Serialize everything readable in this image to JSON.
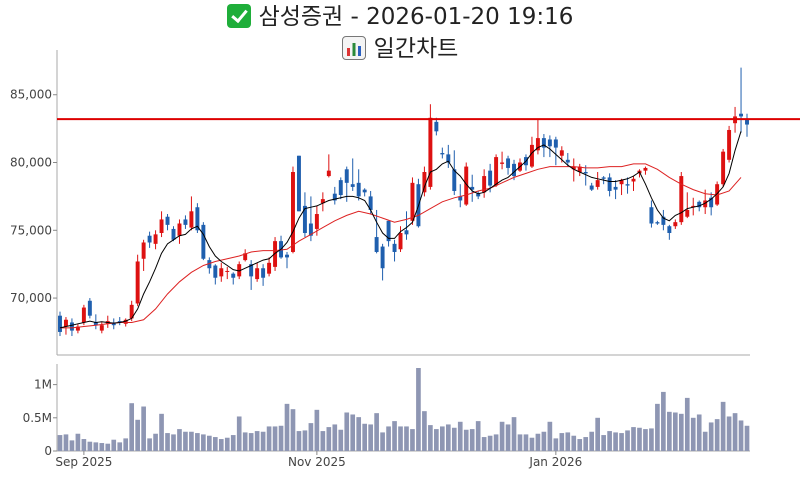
{
  "title": {
    "main": "삼성증권 - 2026-01-20 19:16",
    "sub": "일간차트",
    "main_icon": "check-mark-icon",
    "sub_icon": "bar-chart-icon"
  },
  "colors": {
    "up": "#dd1111",
    "down": "#1f5fae",
    "ma_short": "#000000",
    "ma_long": "#dd2222",
    "ref_line": "#dd0000",
    "volume": "#8e96b3"
  },
  "chart_data": {
    "type": "candlestick",
    "price_axis": {
      "ylim": [
        65800,
        88300
      ],
      "ticks": [
        70000,
        75000,
        80000,
        85000
      ],
      "tick_labels": [
        "70,000",
        "75,000",
        "80,000",
        "85,000"
      ]
    },
    "volume_axis": {
      "ylim": [
        0,
        1250000
      ],
      "ticks": [
        0,
        500000,
        1000000
      ],
      "tick_labels": [
        "0",
        "0.5M",
        "1M"
      ]
    },
    "x_ticks": [
      {
        "index": 4,
        "label": "Sep 2025"
      },
      {
        "index": 43,
        "label": "Nov 2025"
      },
      {
        "index": 83,
        "label": "Jan 2026"
      }
    ],
    "reference_line": 83200,
    "candles": [
      [
        68700,
        69000,
        67200,
        67500
      ],
      [
        67900,
        68600,
        67300,
        68400
      ],
      [
        68200,
        68500,
        67200,
        67600
      ],
      [
        67600,
        68100,
        67400,
        67900
      ],
      [
        68200,
        69500,
        68000,
        69300
      ],
      [
        69800,
        70000,
        68500,
        68700
      ],
      [
        68200,
        68800,
        67700,
        68000
      ],
      [
        67600,
        68200,
        67400,
        68000
      ],
      [
        68100,
        68700,
        67800,
        68300
      ],
      [
        68200,
        68500,
        67700,
        68000
      ],
      [
        68300,
        68600,
        68000,
        68200
      ],
      [
        68100,
        68500,
        67900,
        68400
      ],
      [
        68500,
        69800,
        68300,
        69500
      ],
      [
        69600,
        73200,
        69400,
        72700
      ],
      [
        72900,
        74300,
        72000,
        74100
      ],
      [
        74600,
        74900,
        73700,
        74100
      ],
      [
        74000,
        75000,
        73600,
        74700
      ],
      [
        74800,
        76400,
        74500,
        75800
      ],
      [
        76000,
        76200,
        75000,
        75400
      ],
      [
        75100,
        75300,
        74200,
        74300
      ],
      [
        74600,
        75800,
        74000,
        75500
      ],
      [
        75800,
        76100,
        75100,
        75400
      ],
      [
        75200,
        77500,
        75000,
        76400
      ],
      [
        76700,
        77000,
        74800,
        75000
      ],
      [
        75400,
        75600,
        72800,
        72900
      ],
      [
        72800,
        73000,
        71800,
        72200
      ],
      [
        72400,
        72500,
        71000,
        71500
      ],
      [
        71600,
        72600,
        71200,
        72200
      ],
      [
        72000,
        72300,
        71400,
        72000
      ],
      [
        71800,
        71900,
        71000,
        71500
      ],
      [
        71600,
        72700,
        71400,
        72500
      ],
      [
        72800,
        73600,
        72700,
        73300
      ],
      [
        72500,
        72800,
        70600,
        71600
      ],
      [
        71400,
        72600,
        71200,
        72200
      ],
      [
        72200,
        72500,
        70900,
        71500
      ],
      [
        71800,
        73000,
        71600,
        72600
      ],
      [
        72300,
        74500,
        72000,
        74200
      ],
      [
        74200,
        74600,
        72900,
        73000
      ],
      [
        73200,
        73400,
        72200,
        73000
      ],
      [
        73400,
        79700,
        73300,
        79300
      ],
      [
        80500,
        80500,
        76400,
        76400
      ],
      [
        76800,
        77800,
        74500,
        74800
      ],
      [
        75500,
        77500,
        74200,
        74600
      ],
      [
        75100,
        76800,
        74600,
        76200
      ],
      [
        77000,
        77800,
        76400,
        77300
      ],
      [
        79000,
        80600,
        78900,
        79400
      ],
      [
        77700,
        78200,
        76900,
        77200
      ],
      [
        78700,
        78900,
        77300,
        77600
      ],
      [
        79500,
        79700,
        77100,
        78500
      ],
      [
        78400,
        80300,
        77900,
        78200
      ],
      [
        78500,
        79500,
        77200,
        77500
      ],
      [
        78000,
        78100,
        77500,
        77800
      ],
      [
        77500,
        77900,
        76200,
        76500
      ],
      [
        74500,
        76500,
        73300,
        73400
      ],
      [
        73800,
        74000,
        71300,
        72200
      ],
      [
        75700,
        75700,
        73800,
        74200
      ],
      [
        74000,
        74300,
        72700,
        73400
      ],
      [
        73600,
        75300,
        73400,
        74800
      ],
      [
        75000,
        76400,
        74300,
        74700
      ],
      [
        75700,
        78900,
        75400,
        78500
      ],
      [
        78400,
        78800,
        75200,
        75300
      ],
      [
        77800,
        79700,
        77500,
        79300
      ],
      [
        78200,
        84300,
        78000,
        83300
      ],
      [
        83000,
        83300,
        82000,
        82300
      ],
      [
        80700,
        81100,
        80300,
        80600
      ],
      [
        80600,
        81300,
        79600,
        80000
      ],
      [
        79500,
        80900,
        77600,
        77900
      ],
      [
        77500,
        78400,
        76700,
        77200
      ],
      [
        76900,
        80000,
        76800,
        79700
      ],
      [
        78200,
        79100,
        77100,
        78000
      ],
      [
        77700,
        77900,
        77300,
        77500
      ],
      [
        77800,
        79500,
        77400,
        79000
      ],
      [
        79400,
        79900,
        77800,
        78300
      ],
      [
        78300,
        80600,
        78200,
        80400
      ],
      [
        79900,
        80800,
        79500,
        80000
      ],
      [
        80300,
        80500,
        79100,
        79600
      ],
      [
        79900,
        80200,
        78700,
        79000
      ],
      [
        79400,
        80300,
        79300,
        80000
      ],
      [
        80400,
        80600,
        79400,
        79800
      ],
      [
        79700,
        81900,
        79600,
        81300
      ],
      [
        80900,
        83200,
        80600,
        81800
      ],
      [
        81800,
        82100,
        80400,
        81100
      ],
      [
        81700,
        82000,
        80400,
        81200
      ],
      [
        81700,
        81900,
        79800,
        81100
      ],
      [
        80500,
        81200,
        80000,
        80900
      ],
      [
        80200,
        80700,
        79700,
        80000
      ],
      [
        79500,
        80300,
        78600,
        79700
      ],
      [
        79300,
        79900,
        79000,
        79700
      ],
      [
        79300,
        79800,
        78300,
        79200
      ],
      [
        78300,
        78500,
        77900,
        78000
      ],
      [
        78200,
        79300,
        78000,
        78700
      ],
      [
        78900,
        79000,
        78400,
        78800
      ],
      [
        78900,
        79200,
        77500,
        77900
      ],
      [
        78200,
        78700,
        77300,
        78000
      ],
      [
        78400,
        78800,
        77600,
        78700
      ],
      [
        78400,
        78900,
        77700,
        78300
      ],
      [
        78600,
        79000,
        77900,
        78800
      ],
      [
        79200,
        79500,
        78900,
        79400
      ],
      [
        79400,
        79700,
        79100,
        79600
      ],
      [
        76700,
        77200,
        75200,
        75500
      ],
      [
        75600,
        75700,
        75400,
        75500
      ],
      [
        76000,
        76500,
        75000,
        75400
      ],
      [
        75300,
        75400,
        74300,
        74800
      ],
      [
        75300,
        75800,
        75100,
        75600
      ],
      [
        75600,
        79300,
        75400,
        79000
      ],
      [
        76000,
        77800,
        75900,
        76500
      ],
      [
        76700,
        77400,
        76100,
        76800
      ],
      [
        77100,
        77200,
        76400,
        76700
      ],
      [
        76700,
        78000,
        76200,
        77200
      ],
      [
        77400,
        77800,
        76100,
        76700
      ],
      [
        76900,
        78600,
        76800,
        78400
      ],
      [
        78400,
        81000,
        78200,
        80800
      ],
      [
        80200,
        82700,
        80000,
        82400
      ],
      [
        82900,
        84100,
        82200,
        83400
      ],
      [
        83600,
        87000,
        82200,
        83400
      ],
      [
        83200,
        83600,
        81900,
        82800
      ]
    ],
    "ma_short": [
      [
        0,
        67800
      ],
      [
        1,
        67900
      ],
      [
        2,
        68000
      ],
      [
        3,
        68100
      ],
      [
        4,
        68200
      ],
      [
        5,
        68300
      ],
      [
        6,
        68200
      ],
      [
        7,
        68250
      ],
      [
        8,
        68200
      ],
      [
        9,
        68150
      ],
      [
        10,
        68200
      ],
      [
        11,
        68300
      ],
      [
        12,
        68500
      ],
      [
        13,
        69200
      ],
      [
        14,
        70300
      ],
      [
        15,
        71200
      ],
      [
        16,
        72200
      ],
      [
        17,
        73300
      ],
      [
        18,
        74000
      ],
      [
        19,
        74300
      ],
      [
        20,
        74600
      ],
      [
        21,
        74700
      ],
      [
        22,
        75100
      ],
      [
        23,
        75300
      ],
      [
        24,
        74700
      ],
      [
        25,
        73800
      ],
      [
        26,
        73100
      ],
      [
        27,
        72700
      ],
      [
        28,
        72400
      ],
      [
        29,
        72100
      ],
      [
        30,
        72000
      ],
      [
        31,
        72200
      ],
      [
        32,
        72400
      ],
      [
        33,
        72600
      ],
      [
        34,
        72800
      ],
      [
        35,
        72900
      ],
      [
        36,
        73300
      ],
      [
        37,
        73600
      ],
      [
        38,
        74100
      ],
      [
        39,
        74900
      ],
      [
        40,
        75900
      ],
      [
        41,
        76600
      ],
      [
        42,
        76700
      ],
      [
        43,
        76800
      ],
      [
        44,
        77000
      ],
      [
        45,
        77200
      ],
      [
        46,
        77300
      ],
      [
        47,
        77400
      ],
      [
        48,
        77500
      ],
      [
        49,
        77500
      ],
      [
        50,
        77400
      ],
      [
        51,
        77200
      ],
      [
        52,
        76500
      ],
      [
        53,
        75600
      ],
      [
        54,
        74800
      ],
      [
        55,
        74400
      ],
      [
        56,
        74400
      ],
      [
        57,
        74900
      ],
      [
        58,
        75200
      ],
      [
        59,
        75600
      ],
      [
        60,
        76800
      ],
      [
        61,
        78200
      ],
      [
        62,
        79300
      ],
      [
        63,
        79500
      ],
      [
        64,
        79900
      ],
      [
        65,
        80100
      ],
      [
        66,
        79400
      ],
      [
        67,
        79000
      ],
      [
        68,
        78400
      ],
      [
        69,
        77900
      ],
      [
        70,
        77700
      ],
      [
        71,
        77800
      ],
      [
        72,
        78100
      ],
      [
        73,
        78400
      ],
      [
        74,
        78700
      ],
      [
        75,
        78900
      ],
      [
        76,
        79300
      ],
      [
        77,
        79700
      ],
      [
        78,
        80100
      ],
      [
        79,
        80700
      ],
      [
        80,
        81100
      ],
      [
        81,
        81300
      ],
      [
        82,
        81000
      ],
      [
        83,
        80600
      ],
      [
        84,
        80200
      ],
      [
        85,
        79800
      ],
      [
        86,
        79500
      ],
      [
        87,
        79300
      ],
      [
        88,
        79100
      ],
      [
        89,
        78900
      ],
      [
        90,
        78800
      ],
      [
        91,
        78700
      ],
      [
        92,
        78600
      ],
      [
        93,
        78600
      ],
      [
        94,
        78700
      ],
      [
        95,
        78800
      ],
      [
        96,
        79000
      ],
      [
        97,
        79300
      ],
      [
        98,
        78400
      ],
      [
        99,
        77400
      ],
      [
        100,
        76500
      ],
      [
        101,
        75900
      ],
      [
        102,
        75700
      ],
      [
        103,
        76100
      ],
      [
        104,
        76300
      ],
      [
        105,
        76600
      ],
      [
        106,
        76700
      ],
      [
        107,
        76800
      ],
      [
        108,
        77000
      ],
      [
        109,
        77300
      ],
      [
        110,
        77700
      ],
      [
        111,
        78200
      ],
      [
        112,
        79200
      ],
      [
        113,
        80900
      ],
      [
        114,
        82300
      ]
    ],
    "ma_long": [
      [
        0,
        67800
      ],
      [
        2,
        67800
      ],
      [
        4,
        67900
      ],
      [
        6,
        68000
      ],
      [
        8,
        68100
      ],
      [
        10,
        68200
      ],
      [
        12,
        68200
      ],
      [
        14,
        68400
      ],
      [
        16,
        69200
      ],
      [
        18,
        70300
      ],
      [
        20,
        71200
      ],
      [
        22,
        71900
      ],
      [
        24,
        72400
      ],
      [
        26,
        72700
      ],
      [
        28,
        72900
      ],
      [
        30,
        73100
      ],
      [
        32,
        73400
      ],
      [
        34,
        73500
      ],
      [
        36,
        73500
      ],
      [
        38,
        73600
      ],
      [
        40,
        74200
      ],
      [
        42,
        74700
      ],
      [
        44,
        75200
      ],
      [
        46,
        75700
      ],
      [
        48,
        76100
      ],
      [
        50,
        76400
      ],
      [
        52,
        76200
      ],
      [
        54,
        75900
      ],
      [
        56,
        75600
      ],
      [
        58,
        75800
      ],
      [
        60,
        76100
      ],
      [
        62,
        76600
      ],
      [
        64,
        77100
      ],
      [
        66,
        77400
      ],
      [
        68,
        77600
      ],
      [
        70,
        77900
      ],
      [
        72,
        78100
      ],
      [
        74,
        78500
      ],
      [
        76,
        78900
      ],
      [
        78,
        79200
      ],
      [
        80,
        79500
      ],
      [
        82,
        79700
      ],
      [
        84,
        79700
      ],
      [
        86,
        79700
      ],
      [
        88,
        79600
      ],
      [
        90,
        79600
      ],
      [
        92,
        79700
      ],
      [
        94,
        79700
      ],
      [
        96,
        79900
      ],
      [
        98,
        79900
      ],
      [
        100,
        79500
      ],
      [
        102,
        78900
      ],
      [
        104,
        78400
      ],
      [
        106,
        78000
      ],
      [
        108,
        77700
      ],
      [
        110,
        77600
      ],
      [
        112,
        77900
      ],
      [
        114,
        78900
      ]
    ],
    "volume": [
      240000,
      250000,
      160000,
      260000,
      180000,
      140000,
      130000,
      120000,
      110000,
      170000,
      130000,
      190000,
      720000,
      470000,
      670000,
      190000,
      260000,
      560000,
      270000,
      250000,
      330000,
      290000,
      290000,
      270000,
      250000,
      230000,
      210000,
      180000,
      200000,
      240000,
      520000,
      280000,
      270000,
      300000,
      290000,
      370000,
      370000,
      380000,
      710000,
      630000,
      300000,
      310000,
      420000,
      620000,
      300000,
      360000,
      400000,
      320000,
      580000,
      550000,
      510000,
      410000,
      400000,
      570000,
      280000,
      370000,
      450000,
      370000,
      370000,
      330000,
      1250000,
      600000,
      390000,
      330000,
      370000,
      400000,
      350000,
      440000,
      320000,
      330000,
      450000,
      210000,
      230000,
      250000,
      440000,
      400000,
      510000,
      250000,
      250000,
      200000,
      260000,
      290000,
      440000,
      190000,
      270000,
      280000,
      230000,
      180000,
      210000,
      290000,
      500000,
      240000,
      300000,
      280000,
      270000,
      310000,
      360000,
      350000,
      330000,
      340000,
      710000,
      890000,
      590000,
      580000,
      560000,
      800000,
      500000,
      550000,
      290000,
      430000,
      480000,
      740000,
      520000,
      570000,
      460000,
      380000
    ]
  }
}
